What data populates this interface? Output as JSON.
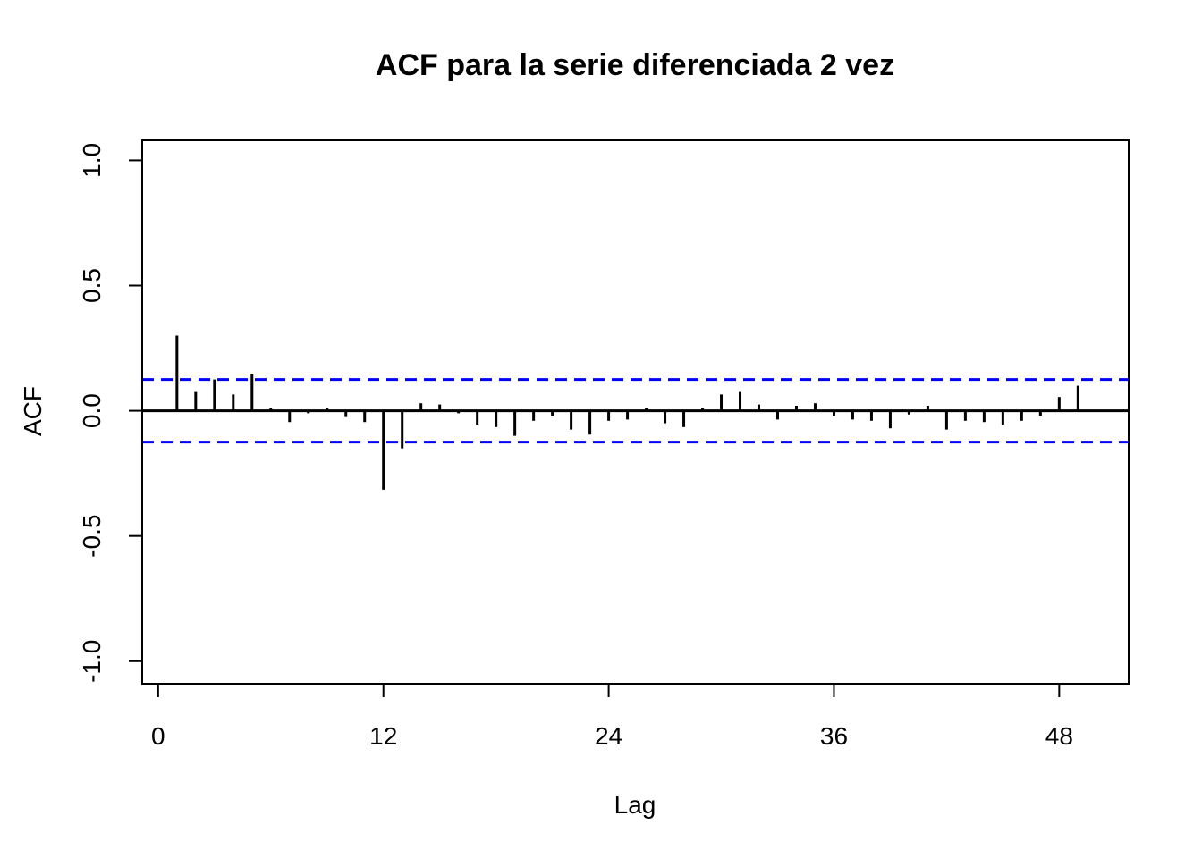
{
  "figure": {
    "kind": "r-acf-plot",
    "background": "#FFFFFF"
  },
  "chart_data": {
    "type": "bar",
    "subtype": "acf-stem-plot",
    "title": "ACF para la serie diferenciada 2 vez",
    "xlabel": "Lag",
    "ylabel": "ACF",
    "xlim": [
      -0.85,
      51.7
    ],
    "ylim": [
      -1.09,
      1.08
    ],
    "xticks": [
      {
        "value": 0,
        "label": "0"
      },
      {
        "value": 12,
        "label": "12"
      },
      {
        "value": 24,
        "label": "24"
      },
      {
        "value": 36,
        "label": "36"
      },
      {
        "value": 48,
        "label": "48"
      }
    ],
    "yticks": [
      {
        "value": -1.0,
        "label": "-1.0"
      },
      {
        "value": -0.5,
        "label": "-0.5"
      },
      {
        "value": 0.0,
        "label": "0.0"
      },
      {
        "value": 0.5,
        "label": "0.5"
      },
      {
        "value": 1.0,
        "label": "1.0"
      }
    ],
    "grid": false,
    "legend": null,
    "confidence_bounds": {
      "upper": 0.125,
      "lower": -0.125,
      "line_style": "dashed",
      "color": "#0000FF"
    },
    "zero_line": 0.0,
    "lags": [
      1,
      2,
      3,
      4,
      5,
      6,
      7,
      8,
      9,
      10,
      11,
      12,
      13,
      14,
      15,
      16,
      17,
      18,
      19,
      20,
      21,
      22,
      23,
      24,
      25,
      26,
      27,
      28,
      29,
      30,
      31,
      32,
      33,
      34,
      35,
      36,
      37,
      38,
      39,
      40,
      41,
      42,
      43,
      44,
      45,
      46,
      47,
      48,
      49,
      50
    ],
    "values": [
      0.3,
      0.075,
      0.125,
      0.065,
      0.145,
      0.01,
      -0.045,
      -0.01,
      0.01,
      -0.025,
      -0.045,
      -0.315,
      -0.15,
      0.03,
      0.025,
      -0.01,
      -0.055,
      -0.065,
      -0.1,
      -0.04,
      -0.02,
      -0.075,
      -0.095,
      -0.04,
      -0.035,
      0.01,
      -0.05,
      -0.065,
      0.01,
      0.065,
      0.075,
      0.025,
      -0.035,
      0.02,
      0.03,
      -0.02,
      -0.035,
      -0.04,
      -0.07,
      -0.015,
      0.02,
      -0.075,
      -0.04,
      -0.045,
      -0.055,
      -0.04,
      -0.02,
      0.055,
      0.1,
      -0.005
    ],
    "colors": {
      "stem": "#000000",
      "axis": "#000000",
      "confidence": "#0000FF",
      "background": "#FFFFFF"
    }
  }
}
